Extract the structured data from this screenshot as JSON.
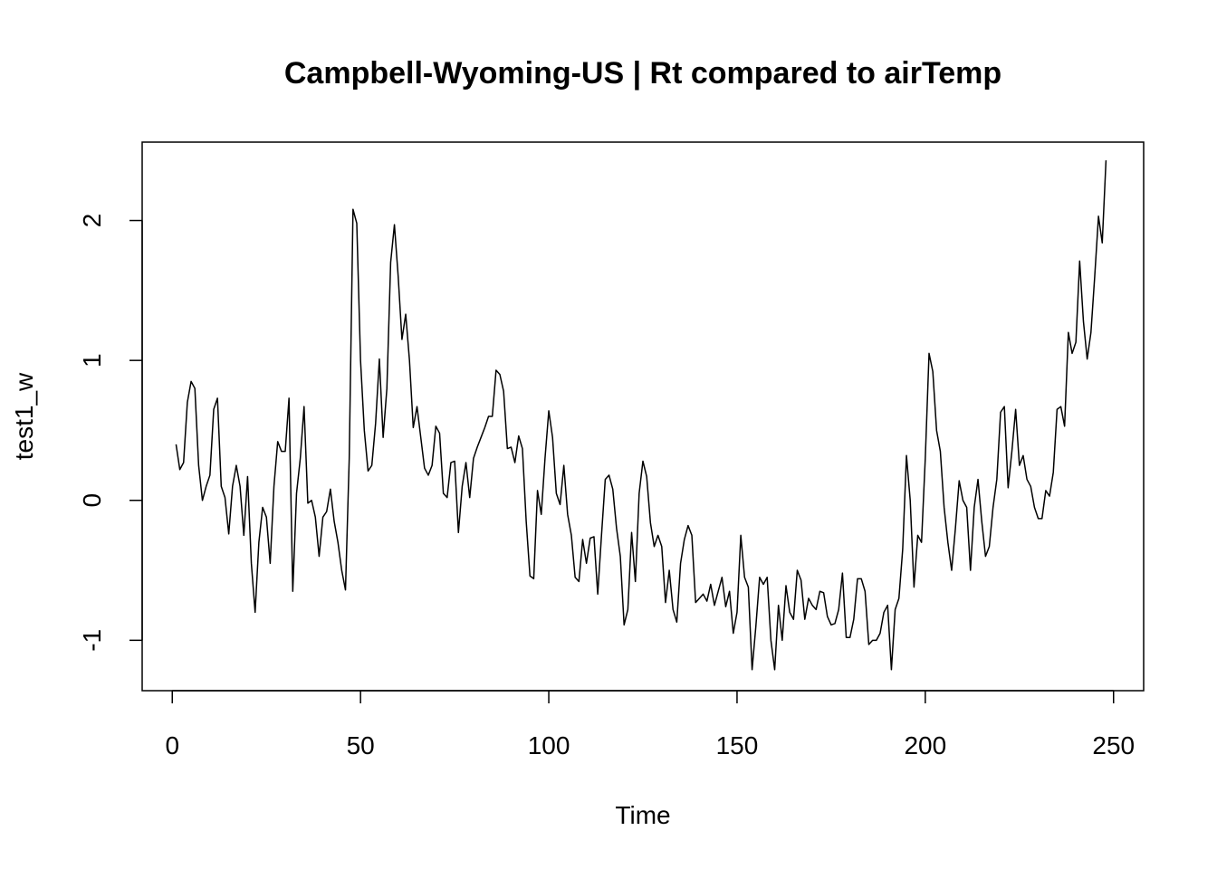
{
  "chart_data": {
    "type": "line",
    "title": "Campbell-Wyoming-US | Rt compared to airTemp",
    "xlabel": "Time",
    "ylabel": "test1_w",
    "xlim": [
      -8,
      258
    ],
    "ylim": [
      -1.36,
      2.56
    ],
    "xticks": [
      0,
      50,
      100,
      150,
      200,
      250
    ],
    "yticks": [
      -1,
      0,
      1,
      2
    ],
    "grid": false,
    "legend": "none",
    "series": [
      {
        "x_start": 1,
        "values": [
          0.4,
          0.22,
          0.27,
          0.7,
          0.85,
          0.8,
          0.25,
          0.0,
          0.1,
          0.18,
          0.65,
          0.73,
          0.1,
          0.02,
          -0.24,
          0.1,
          0.25,
          0.1,
          -0.25,
          0.17,
          -0.45,
          -0.8,
          -0.3,
          -0.05,
          -0.12,
          -0.45,
          0.1,
          0.42,
          0.35,
          0.35,
          0.73,
          -0.65,
          0.05,
          0.3,
          0.67,
          -0.02,
          0.0,
          -0.12,
          -0.4,
          -0.12,
          -0.08,
          0.08,
          -0.15,
          -0.3,
          -0.5,
          -0.64,
          0.3,
          2.08,
          1.98,
          1.0,
          0.5,
          0.21,
          0.25,
          0.55,
          1.01,
          0.45,
          0.8,
          1.7,
          1.97,
          1.6,
          1.15,
          1.33,
          1.0,
          0.52,
          0.67,
          0.45,
          0.23,
          0.18,
          0.25,
          0.53,
          0.48,
          0.05,
          0.02,
          0.27,
          0.28,
          -0.23,
          0.1,
          0.27,
          0.02,
          0.3,
          0.38,
          0.45,
          0.52,
          0.6,
          0.6,
          0.93,
          0.9,
          0.78,
          0.37,
          0.38,
          0.27,
          0.46,
          0.37,
          -0.15,
          -0.54,
          -0.56,
          0.07,
          -0.1,
          0.3,
          0.64,
          0.45,
          0.05,
          -0.03,
          0.25,
          -0.1,
          -0.25,
          -0.55,
          -0.58,
          -0.28,
          -0.45,
          -0.27,
          -0.26,
          -0.67,
          -0.25,
          0.15,
          0.18,
          0.08,
          -0.2,
          -0.4,
          -0.89,
          -0.78,
          -0.23,
          -0.58,
          0.05,
          0.28,
          0.17,
          -0.16,
          -0.33,
          -0.25,
          -0.33,
          -0.73,
          -0.5,
          -0.78,
          -0.87,
          -0.45,
          -0.28,
          -0.18,
          -0.25,
          -0.73,
          -0.7,
          -0.67,
          -0.72,
          -0.6,
          -0.75,
          -0.65,
          -0.55,
          -0.76,
          -0.65,
          -0.95,
          -0.8,
          -0.25,
          -0.55,
          -0.62,
          -1.21,
          -0.9,
          -0.55,
          -0.6,
          -0.55,
          -1.0,
          -1.21,
          -0.75,
          -1.0,
          -0.61,
          -0.8,
          -0.85,
          -0.5,
          -0.57,
          -0.85,
          -0.7,
          -0.75,
          -0.78,
          -0.65,
          -0.66,
          -0.83,
          -0.89,
          -0.88,
          -0.78,
          -0.52,
          -0.98,
          -0.98,
          -0.85,
          -0.56,
          -0.56,
          -0.65,
          -1.03,
          -1.0,
          -1.0,
          -0.95,
          -0.8,
          -0.75,
          -1.21,
          -0.78,
          -0.7,
          -0.35,
          0.32,
          0.0,
          -0.62,
          -0.25,
          -0.3,
          0.3,
          1.05,
          0.92,
          0.5,
          0.35,
          -0.05,
          -0.3,
          -0.5,
          -0.2,
          0.14,
          0.0,
          -0.05,
          -0.5,
          -0.05,
          0.15,
          -0.15,
          -0.4,
          -0.33,
          -0.05,
          0.15,
          0.63,
          0.67,
          0.09,
          0.35,
          0.65,
          0.25,
          0.32,
          0.15,
          0.1,
          -0.05,
          -0.13,
          -0.13,
          0.07,
          0.03,
          0.2,
          0.65,
          0.67,
          0.53,
          1.2,
          1.05,
          1.13,
          1.71,
          1.28,
          1.01,
          1.2,
          1.6,
          2.03,
          1.84,
          2.43
        ]
      }
    ]
  }
}
